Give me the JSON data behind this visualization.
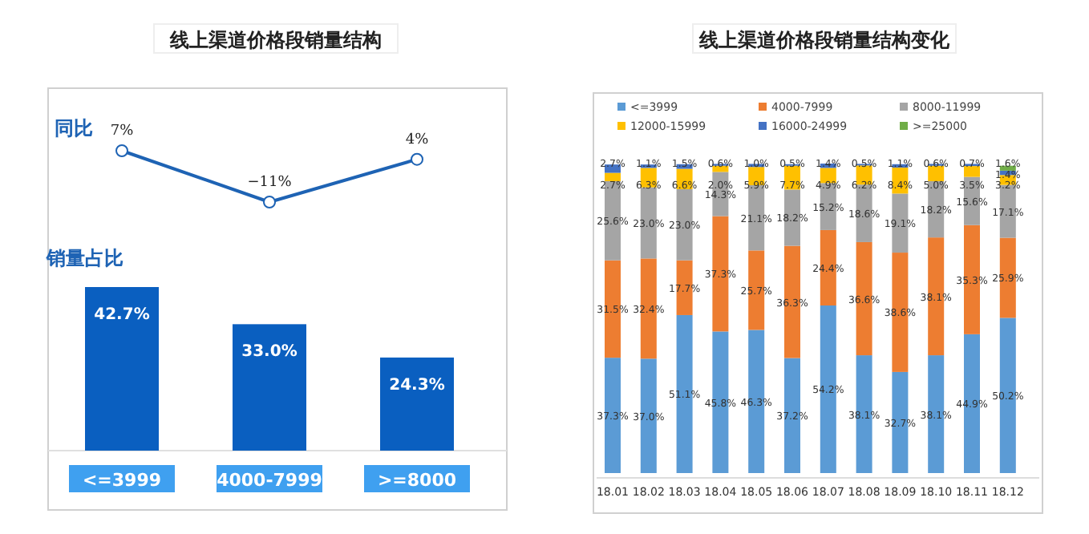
{
  "chart_data": [
    {
      "type": "line",
      "title": "线上渠道价格段销量结构",
      "subtitle": "同比",
      "categories": [
        null,
        null,
        null
      ],
      "marker": "circle",
      "series": [
        {
          "color": "#1e63b4",
          "values": [
            7,
            -11,
            4
          ],
          "value_labels": [
            "7%",
            "−11%",
            "4%"
          ]
        }
      ]
    },
    {
      "type": "bar",
      "title": "销量占比",
      "categories": [
        "<=3999",
        "4000-7999",
        ">=8000"
      ],
      "series": [
        {
          "color": "#0a5fc0",
          "values": [
            42.7,
            33.0,
            24.3
          ],
          "value_labels": [
            "42.7%",
            "33.0%",
            "24.3%"
          ]
        }
      ]
    },
    {
      "type": "bar",
      "stacked": true,
      "title": "线上渠道价格段销量结构变化",
      "legend": "top",
      "categories": [
        "18.01",
        "18.02",
        "18.03",
        "18.04",
        "18.05",
        "18.06",
        "18.07",
        "18.08",
        "18.09",
        "18.10",
        "18.11",
        "18.12"
      ],
      "series": [
        {
          "name": "<=3999",
          "color": "#5b9bd5",
          "values": [
            37.3,
            37.0,
            51.1,
            45.8,
            46.3,
            37.2,
            54.2,
            38.1,
            32.7,
            38.1,
            44.9,
            50.2
          ],
          "value_labels": [
            "37.3%",
            "37.0%",
            "51.1%",
            "45.8%",
            "46.3%",
            "37.2%",
            "54.2%",
            "38.1%",
            "32.7%",
            "38.1%",
            "44.9%",
            "50.2%"
          ]
        },
        {
          "name": "4000-7999",
          "color": "#ed7d31",
          "values": [
            31.5,
            32.4,
            17.7,
            37.3,
            25.7,
            36.3,
            24.4,
            36.6,
            38.6,
            38.1,
            35.3,
            25.9
          ],
          "value_labels": [
            "31.5%",
            "32.4%",
            "17.7%",
            "37.3%",
            "25.7%",
            "36.3%",
            "24.4%",
            "36.6%",
            "38.6%",
            "38.1%",
            "35.3%",
            "25.9%"
          ]
        },
        {
          "name": "8000-11999",
          "color": "#a5a5a5",
          "values": [
            25.6,
            23.0,
            23.0,
            14.3,
            21.1,
            18.2,
            15.2,
            18.6,
            19.1,
            18.2,
            15.6,
            17.1
          ],
          "value_labels": [
            "25.6%",
            "23.0%",
            "23.0%",
            "14.3%",
            "21.1%",
            "18.2%",
            "15.2%",
            "18.6%",
            "19.1%",
            "18.2%",
            "15.6%",
            "17.1%"
          ]
        },
        {
          "name": "12000-15999",
          "color": "#ffc000",
          "values": [
            2.7,
            6.3,
            6.6,
            2.0,
            5.9,
            7.7,
            4.9,
            6.2,
            8.4,
            5.0,
            3.5,
            3.2
          ],
          "value_labels": [
            "2.7%",
            "6.3%",
            "6.6%",
            "2.0%",
            "5.9%",
            "7.7%",
            "4.9%",
            "6.2%",
            "8.4%",
            "5.0%",
            "3.5%",
            "3.2%"
          ]
        },
        {
          "name": "16000-24999",
          "color": "#4472c4",
          "values": [
            2.7,
            1.1,
            1.5,
            0.6,
            1.0,
            0.5,
            1.4,
            0.5,
            1.1,
            0.6,
            0.7,
            1.4
          ],
          "value_labels": [
            "2.7%",
            "1.1%",
            "1.5%",
            "0.6%",
            "1.0%",
            "0.5%",
            "1.4%",
            "0.5%",
            "1.1%",
            "0.6%",
            "0.7%",
            "1.4%"
          ]
        },
        {
          "name": ">=25000",
          "color": "#70ad47",
          "values": [
            null,
            null,
            null,
            null,
            null,
            null,
            null,
            null,
            null,
            null,
            null,
            1.6
          ],
          "value_labels": [
            null,
            null,
            null,
            null,
            null,
            null,
            null,
            null,
            null,
            null,
            null,
            "1.6%"
          ]
        }
      ]
    }
  ]
}
